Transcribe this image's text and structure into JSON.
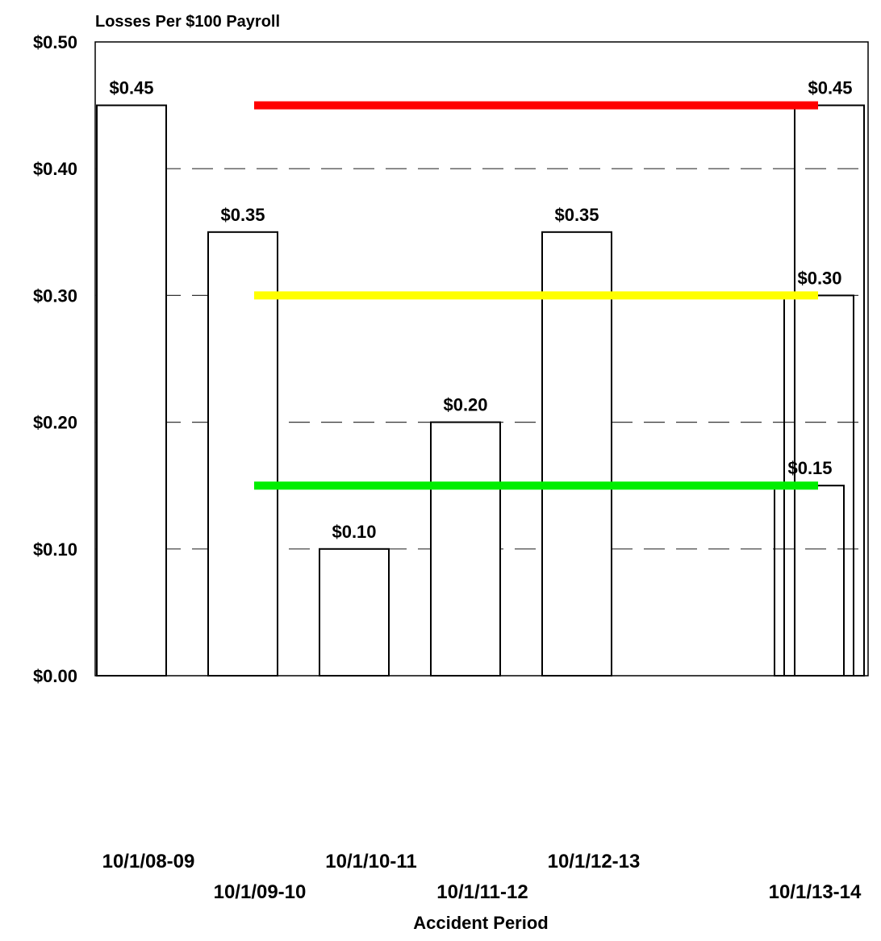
{
  "chart_data": {
    "type": "bar",
    "title": "Losses Per $100 Payroll",
    "xlabel": "Accident Period",
    "ylabel": "",
    "ylim": [
      0,
      0.5
    ],
    "yticks": [
      {
        "value": 0.0,
        "label": "$0.00"
      },
      {
        "value": 0.1,
        "label": "$0.10"
      },
      {
        "value": 0.2,
        "label": "$0.20"
      },
      {
        "value": 0.3,
        "label": "$0.30"
      },
      {
        "value": 0.4,
        "label": "$0.40"
      },
      {
        "value": 0.5,
        "label": "$0.50"
      }
    ],
    "grid": "horizontal dashed",
    "categories": [
      "10/1/08-09",
      "10/1/09-10",
      "10/1/10-11",
      "10/1/11-12",
      "10/1/12-13",
      "10/1/13-14"
    ],
    "values": [
      0.45,
      0.35,
      0.1,
      0.2,
      0.35,
      null
    ],
    "data_labels": [
      "$0.45",
      "$0.35",
      "$0.10",
      "$0.20",
      "$0.35",
      ""
    ],
    "last_period_bars": [
      {
        "value": 0.15,
        "label": "$0.15"
      },
      {
        "value": 0.3,
        "label": "$0.30"
      },
      {
        "value": 0.45,
        "label": "$0.45"
      }
    ],
    "reference_lines": [
      {
        "value": 0.45,
        "color": "#ff0000"
      },
      {
        "value": 0.3,
        "color": "#ffff00"
      },
      {
        "value": 0.15,
        "color": "#00ee00"
      }
    ]
  }
}
